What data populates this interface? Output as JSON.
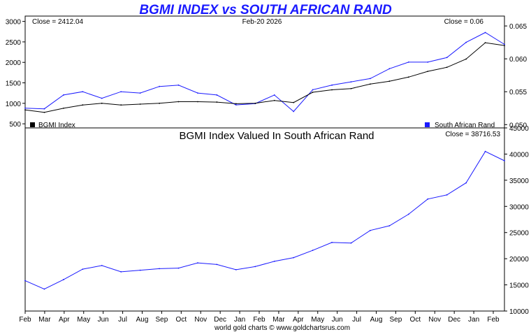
{
  "title": "BGMI INDEX vs SOUTH AFRICAN RAND",
  "footer": "world gold charts © www.goldchartsrus.com",
  "colors": {
    "primary": "#000000",
    "secondary": "#1a1aff",
    "ratio": "#1a1aff",
    "title": "#1a1aff"
  },
  "chart_data": [
    {
      "type": "line",
      "panel": "top",
      "date_label": "Feb-20  2026",
      "left_close": "Close = 2412.04",
      "right_close": "Close = 0.06",
      "yleft_ticks": [
        "3000",
        "2500",
        "2000",
        "1500",
        "1000",
        "500"
      ],
      "yright_ticks": [
        "0.065",
        "0.060",
        "0.055",
        "0.050"
      ],
      "ylim_left": [
        400,
        3130
      ],
      "ylim_right": [
        0.0495,
        0.0665
      ],
      "legend_left": "BGMI Index",
      "legend_right": "South African Rand",
      "x": [
        "Feb",
        "Mar",
        "Apr",
        "May",
        "Jun",
        "Jul",
        "Aug",
        "Sep",
        "Oct",
        "Nov",
        "Dec",
        "Jan",
        "Feb",
        "Mar",
        "Apr",
        "May",
        "Jun",
        "Jul",
        "Aug",
        "Sep",
        "Oct",
        "Nov",
        "Dec",
        "Jan",
        "Feb",
        "Feb-20"
      ],
      "series": [
        {
          "name": "BGMI Index",
          "axis": "left",
          "values": [
            840,
            780,
            880,
            960,
            1000,
            960,
            980,
            1000,
            1040,
            1040,
            1030,
            990,
            1000,
            1070,
            1020,
            1270,
            1330,
            1360,
            1470,
            1540,
            1640,
            1780,
            1880,
            2080,
            2480,
            2412
          ]
        },
        {
          "name": "South African Rand",
          "axis": "right",
          "values": [
            0.0525,
            0.0524,
            0.0545,
            0.055,
            0.054,
            0.055,
            0.0548,
            0.0558,
            0.056,
            0.0548,
            0.0545,
            0.053,
            0.0532,
            0.0545,
            0.052,
            0.0553,
            0.056,
            0.0565,
            0.057,
            0.0585,
            0.0595,
            0.0595,
            0.0602,
            0.0625,
            0.064,
            0.0622
          ]
        }
      ]
    },
    {
      "type": "line",
      "panel": "bottom",
      "title": "BGMI Index Valued In South African Rand",
      "close": "Close = 38716.53",
      "yright_ticks": [
        "45000",
        "40000",
        "35000",
        "30000",
        "25000",
        "20000",
        "15000",
        "10000"
      ],
      "ylim": [
        10000,
        45000
      ],
      "x": [
        "Feb",
        "Mar",
        "Apr",
        "May",
        "Jun",
        "Jul",
        "Aug",
        "Sep",
        "Oct",
        "Nov",
        "Dec",
        "Jan",
        "Feb",
        "Mar",
        "Apr",
        "May",
        "Jun",
        "Jul",
        "Aug",
        "Sep",
        "Oct",
        "Nov",
        "Dec",
        "Jan",
        "Feb",
        "Feb-20"
      ],
      "series": [
        {
          "name": "BGMI Index Valued In South African Rand",
          "values": [
            15800,
            14200,
            16000,
            18000,
            18700,
            17500,
            17800,
            18100,
            18200,
            19200,
            18900,
            17900,
            18500,
            19500,
            20200,
            21600,
            23100,
            23000,
            25400,
            26300,
            28500,
            31400,
            32200,
            34500,
            40500,
            38716
          ]
        }
      ],
      "xticks": [
        "Feb",
        "Mar",
        "Apr",
        "May",
        "Jun",
        "Jul",
        "Aug",
        "Sep",
        "Oct",
        "Nov",
        "Dec",
        "Jan",
        "Feb",
        "Mar",
        "Apr",
        "May",
        "Jun",
        "Jul",
        "Aug",
        "Sep",
        "Oct",
        "Nov",
        "Dec",
        "Jan",
        "Feb"
      ]
    }
  ]
}
